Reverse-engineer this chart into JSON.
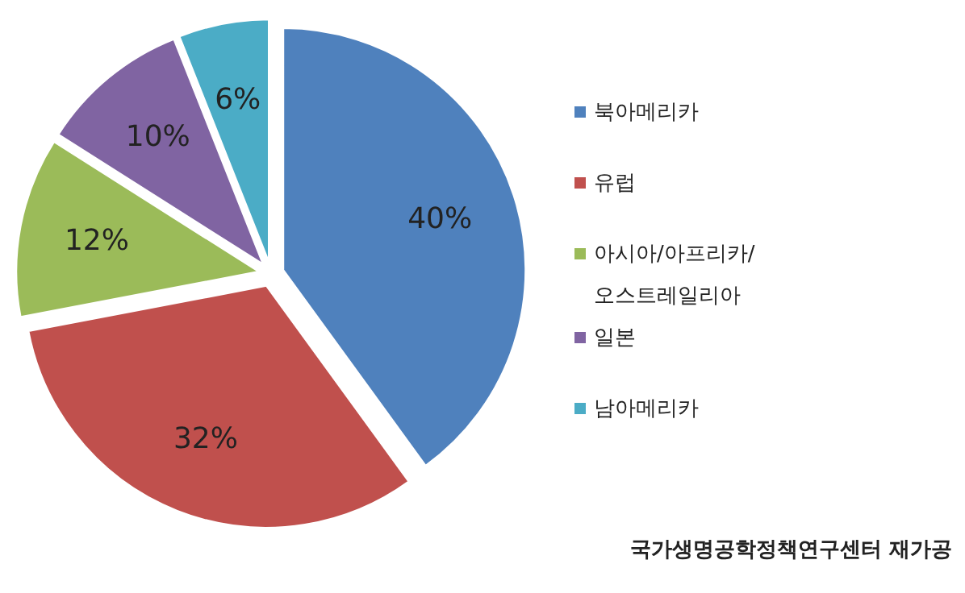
{
  "chart_data": {
    "type": "pie",
    "categories": [
      "북아메리카",
      "유럽",
      "아시아/아프리카/오스트레일리아",
      "일본",
      "남아메리카"
    ],
    "values": [
      40,
      32,
      12,
      10,
      6
    ],
    "colors": [
      "#4f81bd",
      "#c0504d",
      "#9bbb59",
      "#8064a2",
      "#4bacc6"
    ],
    "value_labels": [
      "40%",
      "32%",
      "12%",
      "10%",
      "6%"
    ],
    "legend": "right",
    "annotations": [
      "국가생명공학정책연구센터 재가공"
    ]
  }
}
